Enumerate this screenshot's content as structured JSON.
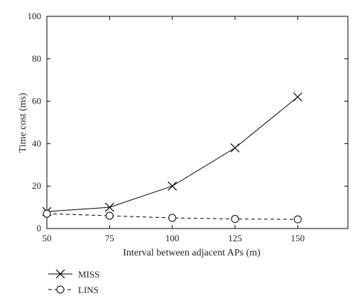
{
  "chart_data": {
    "type": "line",
    "xlabel": "Interval between adjacent APs (m)",
    "ylabel": "Time cost (ms)",
    "xlim": [
      50,
      170
    ],
    "ylim": [
      0,
      100
    ],
    "xticks": [
      50,
      75,
      100,
      125,
      150
    ],
    "yticks": [
      0,
      20,
      40,
      60,
      80,
      100
    ],
    "grid": false,
    "legend_position": "bottom-left, below plot",
    "series": [
      {
        "name": "MISS",
        "marker": "x",
        "line_style": "solid",
        "color": "#000000",
        "x": [
          50,
          75,
          100,
          125,
          150
        ],
        "y": [
          8,
          10,
          20,
          38,
          62
        ]
      },
      {
        "name": "LINS",
        "marker": "circle",
        "line_style": "dashed",
        "color": "#000000",
        "x": [
          50,
          75,
          100,
          125,
          150
        ],
        "y": [
          7,
          6,
          5,
          4.5,
          4.3
        ]
      }
    ]
  }
}
